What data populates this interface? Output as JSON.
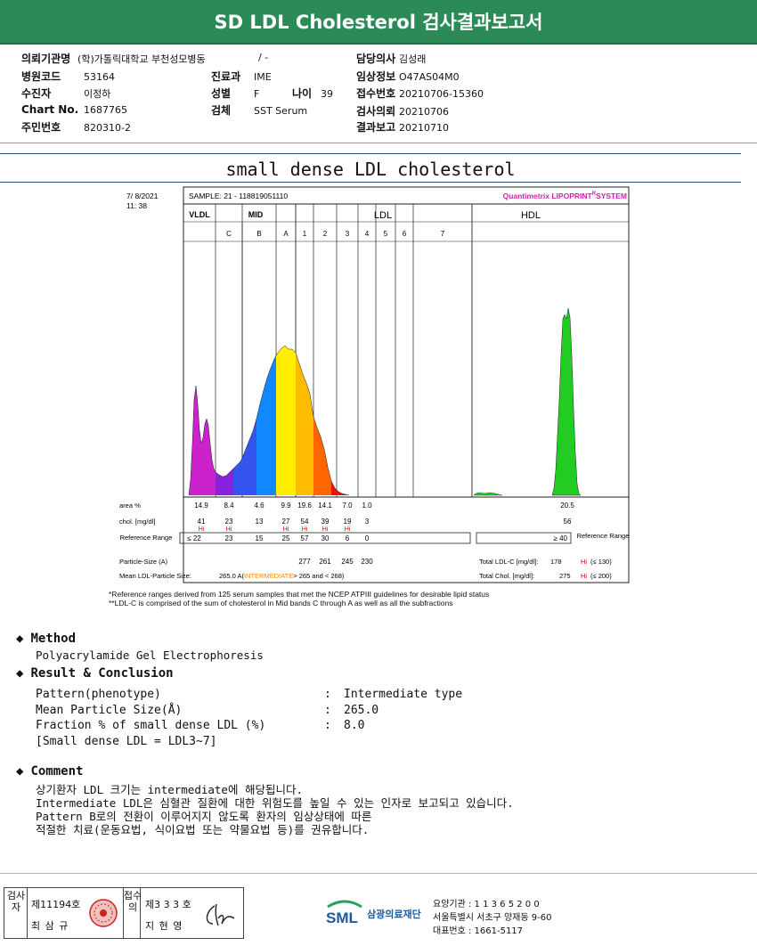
{
  "header": {
    "title": "SD LDL Cholesterol 검사결과보고서"
  },
  "patient": {
    "institution": {
      "label": "의뢰기관명",
      "value": "(학)가톨릭대학교 부천성모병동"
    },
    "ward_value": "/ -",
    "doctor": {
      "label": "담당의사",
      "value": "김성래"
    },
    "hospital_code": {
      "label": "병원코드",
      "value": "53164"
    },
    "department": {
      "label": "진료과",
      "value": "IME"
    },
    "clinical_info": {
      "label": "임상정보",
      "value": "O47AS04M0"
    },
    "recipient": {
      "label": "수진자",
      "value": "이정하"
    },
    "sex": {
      "label": "성별",
      "value": "F"
    },
    "age": {
      "label": "나이",
      "value": "39"
    },
    "receipt_no": {
      "label": "접수번호",
      "value": "20210706-15360"
    },
    "chart_no": {
      "label": "Chart No.",
      "value": "1687765"
    },
    "specimen": {
      "label": "검체",
      "value": "SST Serum"
    },
    "request_date": {
      "label": "검사의뢰",
      "value": "20210706"
    },
    "resident_no": {
      "label": "주민번호",
      "value": "820310-2"
    },
    "report_date": {
      "label": "결과보고",
      "value": "20210710"
    }
  },
  "report_title": "small dense LDL cholesterol",
  "chart_data": {
    "type": "area",
    "date": "7/ 8/2021",
    "time": "11: 38",
    "sample": "SAMPLE:   21 - 118819051110",
    "system": "Quantimetrix LIPOPRINT",
    "system_reg": "R",
    "system_suffix": "SYSTEM",
    "groups": [
      "VLDL",
      "MID",
      "LDL",
      "HDL"
    ],
    "band_labels": [
      "C",
      "B",
      "A",
      "1",
      "2",
      "3",
      "4",
      "5",
      "6",
      "7"
    ],
    "row_labels": {
      "area": "area %",
      "chol": "chol. [mg/dl]",
      "ref": "Reference Range",
      "particle": "Particle-Size (A)",
      "mean": "Mean LDL-Particle Size:"
    },
    "area_pct": [
      "14.9",
      "8.4",
      "4.6",
      "9.9",
      "19.6",
      "14.1",
      "7.0",
      "1.0"
    ],
    "hdl_area_pct": "20.5",
    "chol": [
      "41",
      "23",
      "13",
      "27",
      "54",
      "39",
      "19",
      "3"
    ],
    "hdl_chol": "56",
    "hi_flags": [
      "Hi",
      "Hi",
      "Hi",
      "Hi",
      "Hi",
      "Hi"
    ],
    "ref_range": [
      "≤ 22",
      "23",
      "15",
      "25",
      "57",
      "30",
      "6",
      "0"
    ],
    "hdl_ref": "≥ 40",
    "particle_size": [
      "277",
      "261",
      "245",
      "230"
    ],
    "mean_size_value": "265.0 A",
    "mean_size_type": "INTERMEDIATE",
    "mean_size_range": "> 265 and < 268)",
    "total_ldl": {
      "label": "Total LDL-C [mg/dl]:",
      "value": "178",
      "flag": "Hi",
      "limit": "(≤ 130)"
    },
    "total_chol": {
      "label": "Total Chol. [mg/dl]:",
      "value": "275",
      "flag": "Hi",
      "limit": "(≤ 200)"
    },
    "colors": {
      "vldl": "#cc22cc",
      "c": "#8822dd",
      "b": "#3355ee",
      "a": "#1188ff",
      "ldl1": "#ffee00",
      "ldl2": "#ffbb00",
      "ldl3": "#ff6600",
      "ldl4": "#ee1100",
      "hdl": "#22cc22"
    }
  },
  "footnotes": [
    "*Reference ranges derived from 125 serum samples that met the NCEP ATPIII guidelines for desirable lipid status",
    "**LDL-C is comprised of the sum of cholesterol in Mid bands C through A as well as all the subfractions"
  ],
  "method": {
    "heading": "Method",
    "text": "Polyacrylamide Gel Electrophoresis"
  },
  "result": {
    "heading": "Result & Conclusion",
    "rows": [
      {
        "label": "Pattern(phenotype)",
        "value": "Intermediate type"
      },
      {
        "label": "Mean Particle Size(Å)",
        "value": "265.0"
      },
      {
        "label": "Fraction % of small dense LDL (%)",
        "value": "8.0"
      }
    ],
    "note": "[Small dense LDL = LDL3~7]"
  },
  "comment": {
    "heading": "Comment",
    "lines": [
      "상기환자 LDL 크기는 intermediate에 해당됩니다.",
      "Intermediate LDL은 심혈관 질환에 대한 위험도를 높일 수 있는 인자로 보고되고 있습니다.",
      "Pattern B로의 전환이 이루어지지 않도록 환자의 임상상태에 따른",
      "적절한 치료(운동요법, 식이요법 또는 약물요법 등)를 권유합니다."
    ]
  },
  "footer": {
    "examiner_label": "검사자",
    "examiner_no": "제11194호",
    "examiner_name": "최 삼 규",
    "confirmer_label": "접수의",
    "confirmer_no": "제3 3 3 호",
    "confirmer_name": "지 현 영",
    "org_name": "삼광의료재단",
    "org_logo": "SML",
    "care_no": "요양기관 : 1 1 3 6 5 2 0 0",
    "address": "서울특별시 서초구 양재동 9-60",
    "phone": "대표번호 : 1661-5117"
  }
}
